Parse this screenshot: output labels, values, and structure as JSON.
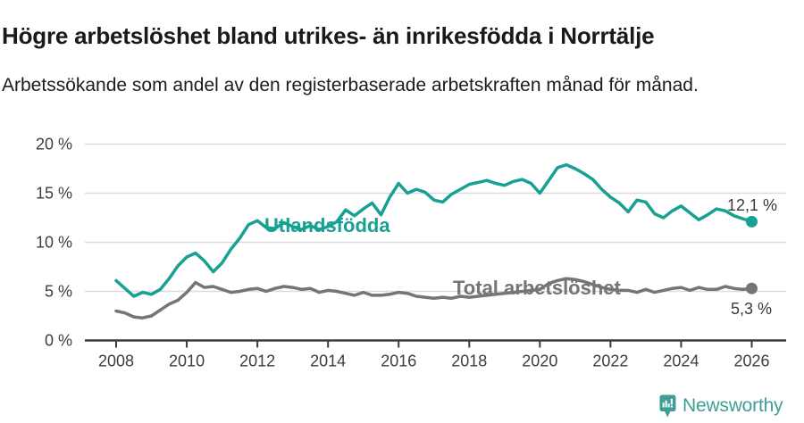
{
  "header": {
    "title": "Högre arbetslöshet bland utrikes- än inrikesfödda i Norrtälje",
    "subtitle": "Arbetssökande som andel av den registerbaserade arbetskraften månad för månad."
  },
  "colors": {
    "foreign_series": "#18a092",
    "total_series": "#747479",
    "grid": "#dcdcdc",
    "axis": "#3b3b3b",
    "tick_text": "#3d3d3d",
    "value_text": "#3a3a3a",
    "brand_teal": "#3f9e96"
  },
  "chart_data": {
    "type": "line",
    "title": "Högre arbetslöshet bland utrikes- än inrikesfödda i Norrtälje",
    "subtitle": "Arbetssökande som andel av den registerbaserade arbetskraften månad för månad.",
    "xlabel": "",
    "ylabel": "",
    "grid": "horizontal",
    "legend_position": "inline-on-lines",
    "x_range": [
      2008,
      2026
    ],
    "ylim": [
      0,
      20
    ],
    "x_ticks": [
      {
        "value": 2008,
        "label": "2008"
      },
      {
        "value": 2010,
        "label": "2010"
      },
      {
        "value": 2012,
        "label": "2012"
      },
      {
        "value": 2014,
        "label": "2014"
      },
      {
        "value": 2016,
        "label": "2016"
      },
      {
        "value": 2018,
        "label": "2018"
      },
      {
        "value": 2020,
        "label": "2020"
      },
      {
        "value": 2022,
        "label": "2022"
      },
      {
        "value": 2024,
        "label": "2024"
      },
      {
        "value": 2026,
        "label": "2026"
      }
    ],
    "y_ticks": [
      {
        "value": 0,
        "label": "0 %"
      },
      {
        "value": 5,
        "label": "5 %"
      },
      {
        "value": 10,
        "label": "10 %"
      },
      {
        "value": 15,
        "label": "15 %"
      },
      {
        "value": 20,
        "label": "20 %"
      }
    ],
    "x_start_year": 2008,
    "x_step_years": 0.25,
    "series": [
      {
        "name": "Utlandsfödda",
        "color": "#18a092",
        "end_label": "12,1 %",
        "end_value": 12.1,
        "values": [
          6.1,
          5.3,
          4.5,
          4.9,
          4.7,
          5.2,
          6.3,
          7.6,
          8.5,
          8.9,
          8.1,
          7.0,
          7.9,
          9.3,
          10.4,
          11.8,
          12.2,
          11.5,
          11.4,
          12.0,
          11.6,
          11.3,
          11.7,
          11.3,
          11.6,
          12.1,
          13.3,
          12.7,
          13.4,
          14.0,
          12.8,
          14.6,
          16.0,
          15.0,
          15.4,
          15.1,
          14.3,
          14.1,
          14.9,
          15.4,
          15.9,
          16.1,
          16.3,
          16.0,
          15.8,
          16.2,
          16.4,
          16.0,
          15.0,
          16.3,
          17.6,
          17.9,
          17.5,
          17.0,
          16.4,
          15.4,
          14.6,
          14.0,
          13.1,
          14.3,
          14.1,
          12.9,
          12.5,
          13.2,
          13.7,
          13.0,
          12.3,
          12.8,
          13.4,
          13.2,
          12.7,
          12.4,
          12.1
        ]
      },
      {
        "name": "Total arbetslöshet",
        "color": "#747479",
        "end_label": "5,3 %",
        "end_value": 5.3,
        "values": [
          3.0,
          2.8,
          2.4,
          2.3,
          2.5,
          3.1,
          3.7,
          4.1,
          4.9,
          5.9,
          5.4,
          5.5,
          5.2,
          4.9,
          5.0,
          5.2,
          5.3,
          5.0,
          5.3,
          5.5,
          5.4,
          5.2,
          5.3,
          4.9,
          5.1,
          5.0,
          4.8,
          4.6,
          4.9,
          4.6,
          4.6,
          4.7,
          4.9,
          4.8,
          4.5,
          4.4,
          4.3,
          4.4,
          4.3,
          4.5,
          4.4,
          4.5,
          4.6,
          4.7,
          4.8,
          4.9,
          5.0,
          5.1,
          5.2,
          5.8,
          6.1,
          6.3,
          6.2,
          6.0,
          5.7,
          5.4,
          5.2,
          5.1,
          5.1,
          4.9,
          5.2,
          4.9,
          5.1,
          5.3,
          5.4,
          5.1,
          5.4,
          5.2,
          5.2,
          5.5,
          5.3,
          5.2,
          5.3
        ]
      }
    ]
  },
  "footer": {
    "brand": "Newsworthy",
    "logo_icon": "bar-chart-speech-bubble-icon"
  }
}
